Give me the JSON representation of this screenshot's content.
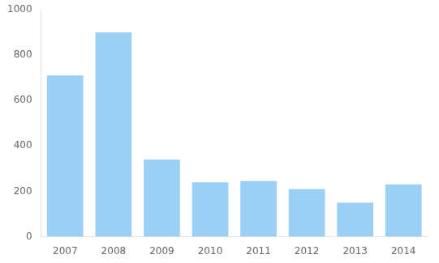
{
  "chart_data": {
    "type": "bar",
    "categories": [
      "2007",
      "2008",
      "2009",
      "2010",
      "2011",
      "2012",
      "2013",
      "2014"
    ],
    "values": [
      710,
      900,
      340,
      240,
      245,
      210,
      150,
      230
    ],
    "ylim": [
      0,
      1000
    ],
    "yticks": [
      0,
      200,
      400,
      600,
      800,
      1000
    ],
    "grid": false
  }
}
